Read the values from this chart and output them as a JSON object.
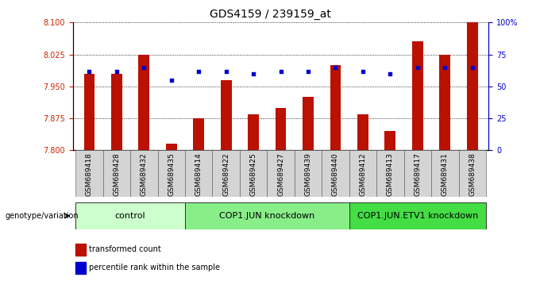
{
  "title": "GDS4159 / 239159_at",
  "samples": [
    "GSM689418",
    "GSM689428",
    "GSM689432",
    "GSM689435",
    "GSM689414",
    "GSM689422",
    "GSM689425",
    "GSM689427",
    "GSM689439",
    "GSM689440",
    "GSM689412",
    "GSM689413",
    "GSM689417",
    "GSM689431",
    "GSM689438"
  ],
  "transformed_count": [
    7.98,
    7.98,
    8.025,
    7.815,
    7.875,
    7.965,
    7.885,
    7.9,
    7.925,
    8.0,
    7.885,
    7.845,
    8.055,
    8.025,
    8.1
  ],
  "percentile_rank": [
    62,
    62,
    65,
    55,
    62,
    62,
    60,
    62,
    62,
    65,
    62,
    60,
    65,
    65,
    65
  ],
  "groups": [
    {
      "label": "control",
      "start": 0,
      "end": 4,
      "color": "#ccffcc"
    },
    {
      "label": "COP1.JUN knockdown",
      "start": 4,
      "end": 10,
      "color": "#88ee88"
    },
    {
      "label": "COP1.JUN.ETV1 knockdown",
      "start": 10,
      "end": 15,
      "color": "#44dd44"
    }
  ],
  "ylim_left": [
    7.8,
    8.1
  ],
  "ylim_right": [
    0,
    100
  ],
  "yticks_left": [
    7.8,
    7.875,
    7.95,
    8.025,
    8.1
  ],
  "yticks_right": [
    0,
    25,
    50,
    75,
    100
  ],
  "bar_color": "#bb1100",
  "dot_color": "#0000cc",
  "bar_bottom": 7.8,
  "legend_items": [
    {
      "label": "transformed count",
      "color": "#bb1100"
    },
    {
      "label": "percentile rank within the sample",
      "color": "#0000cc"
    }
  ],
  "title_fontsize": 10,
  "tick_fontsize": 7,
  "label_fontsize": 7,
  "group_fontsize": 8
}
